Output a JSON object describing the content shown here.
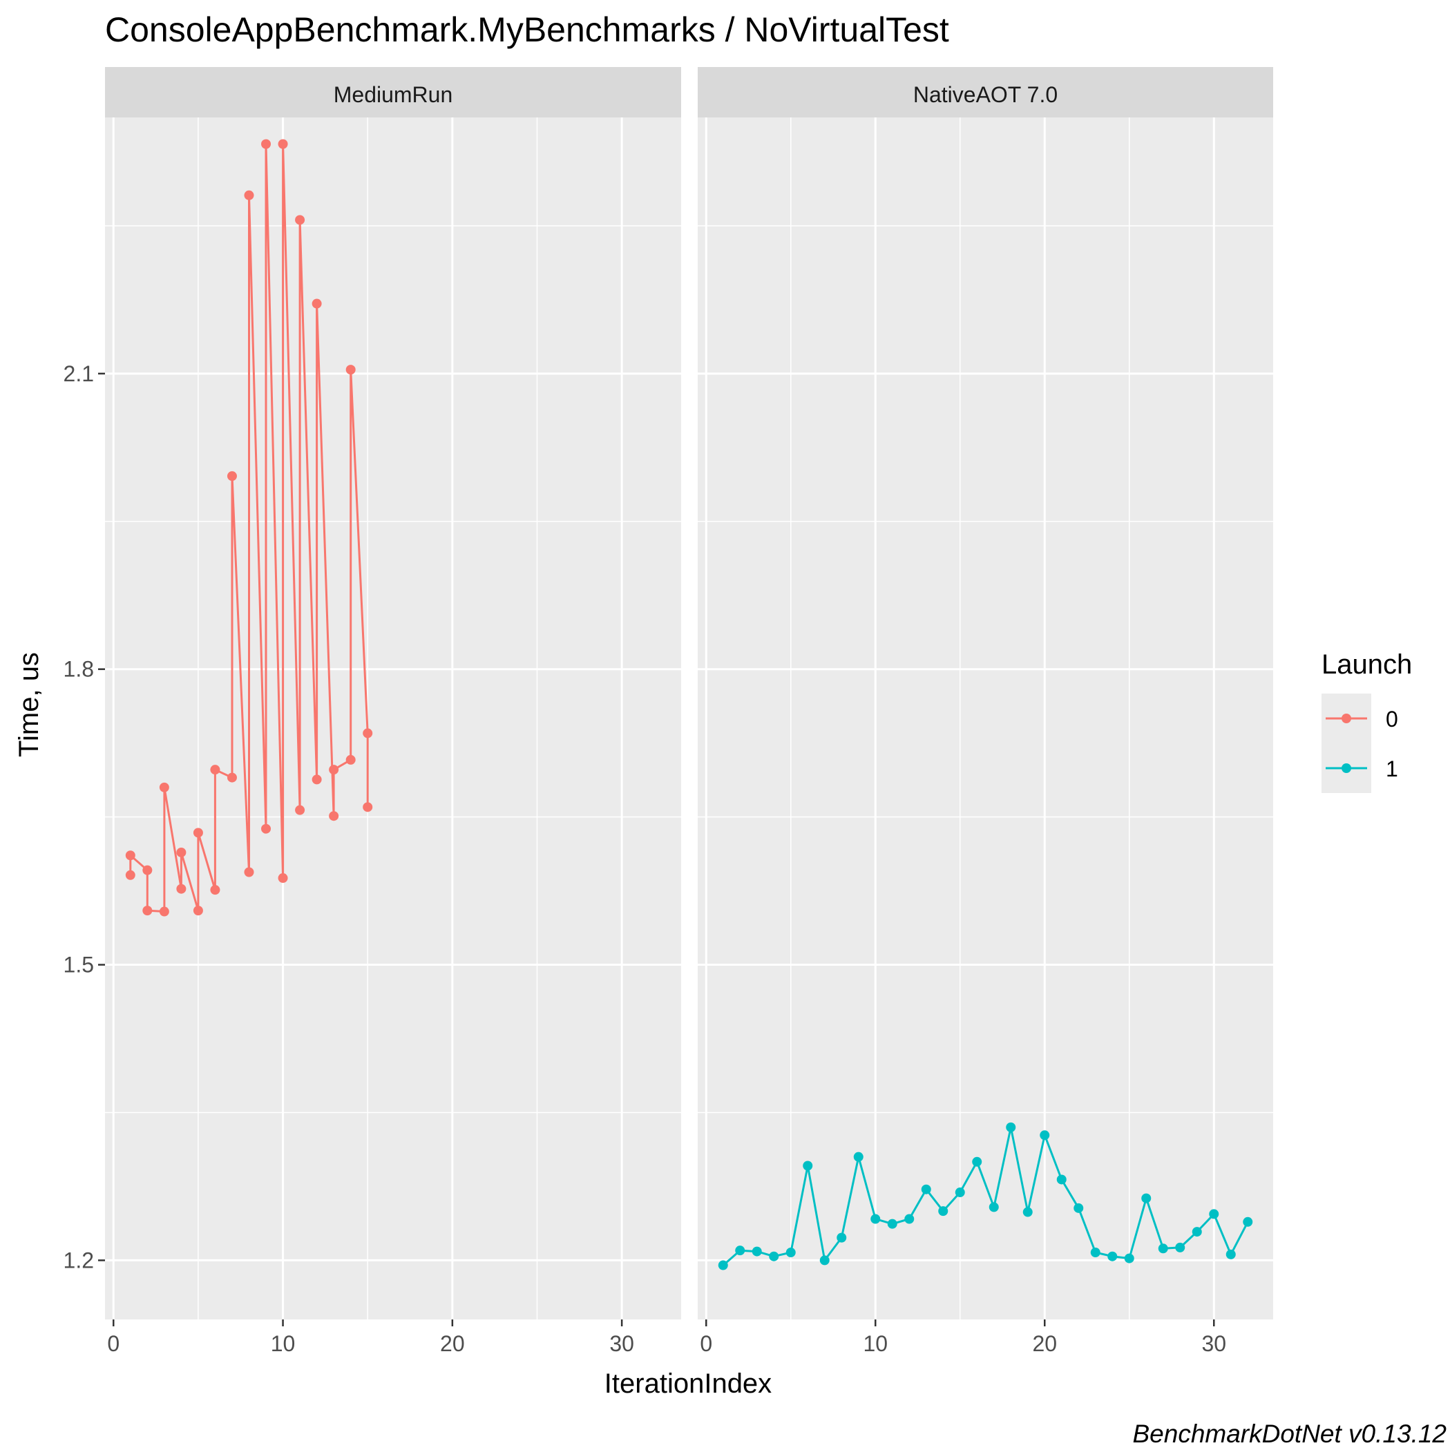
{
  "chart_data": {
    "type": "line",
    "title": "ConsoleAppBenchmark.MyBenchmarks / NoVirtualTest",
    "xlabel": "IterationIndex",
    "ylabel": "Time, us",
    "caption": "BenchmarkDotNet v0.13.12",
    "ylim": [
      1.14,
      2.36
    ],
    "yticks": [
      1.2,
      1.5,
      1.8,
      2.1
    ],
    "ytick_labels": [
      "1.2",
      "1.5",
      "1.8",
      "2.1"
    ],
    "legend": {
      "title": "Launch",
      "position": "right",
      "entries": [
        {
          "label": "0",
          "color": "#F8766D"
        },
        {
          "label": "1",
          "color": "#00BFC4"
        }
      ]
    },
    "panels": [
      {
        "name": "MediumRun",
        "xlim": [
          -0.5,
          33.5
        ],
        "xticks": [
          0,
          10,
          20,
          30
        ],
        "xtick_labels": [
          "0",
          "10",
          "20",
          "30"
        ],
        "series": [
          {
            "launch": "0",
            "color": "#F8766D",
            "x": [
              1,
              1,
              2,
              2,
              3,
              3,
              4,
              4,
              5,
              5,
              6,
              6,
              7,
              7,
              8,
              8,
              9,
              9,
              10,
              10,
              11,
              11,
              12,
              12,
              13,
              13,
              14,
              14,
              15,
              15
            ],
            "y": [
              1.591,
              1.611,
              1.596,
              1.555,
              1.554,
              1.68,
              1.577,
              1.614,
              1.555,
              1.634,
              1.576,
              1.698,
              1.69,
              1.996,
              1.594,
              2.281,
              1.638,
              2.333,
              1.588,
              2.333,
              1.657,
              2.256,
              1.688,
              2.171,
              1.651,
              1.698,
              1.708,
              2.104,
              1.735,
              1.66
            ]
          }
        ]
      },
      {
        "name": "NativeAOT 7.0",
        "xlim": [
          -0.5,
          33.5
        ],
        "xticks": [
          0,
          10,
          20,
          30
        ],
        "xtick_labels": [
          "0",
          "10",
          "20",
          "30"
        ],
        "series": [
          {
            "launch": "1",
            "color": "#00BFC4",
            "x": [
              1,
              2,
              3,
              4,
              5,
              6,
              7,
              8,
              9,
              10,
              11,
              12,
              13,
              14,
              15,
              16,
              17,
              18,
              19,
              20,
              21,
              22,
              23,
              24,
              25,
              26,
              27,
              28,
              29,
              30,
              31,
              32
            ],
            "y": [
              1.195,
              1.21,
              1.209,
              1.204,
              1.208,
              1.296,
              1.2,
              1.223,
              1.305,
              1.242,
              1.237,
              1.242,
              1.272,
              1.25,
              1.269,
              1.3,
              1.254,
              1.335,
              1.249,
              1.327,
              1.282,
              1.253,
              1.208,
              1.204,
              1.202,
              1.263,
              1.212,
              1.213,
              1.229,
              1.247,
              1.206,
              1.239
            ]
          }
        ]
      }
    ]
  }
}
